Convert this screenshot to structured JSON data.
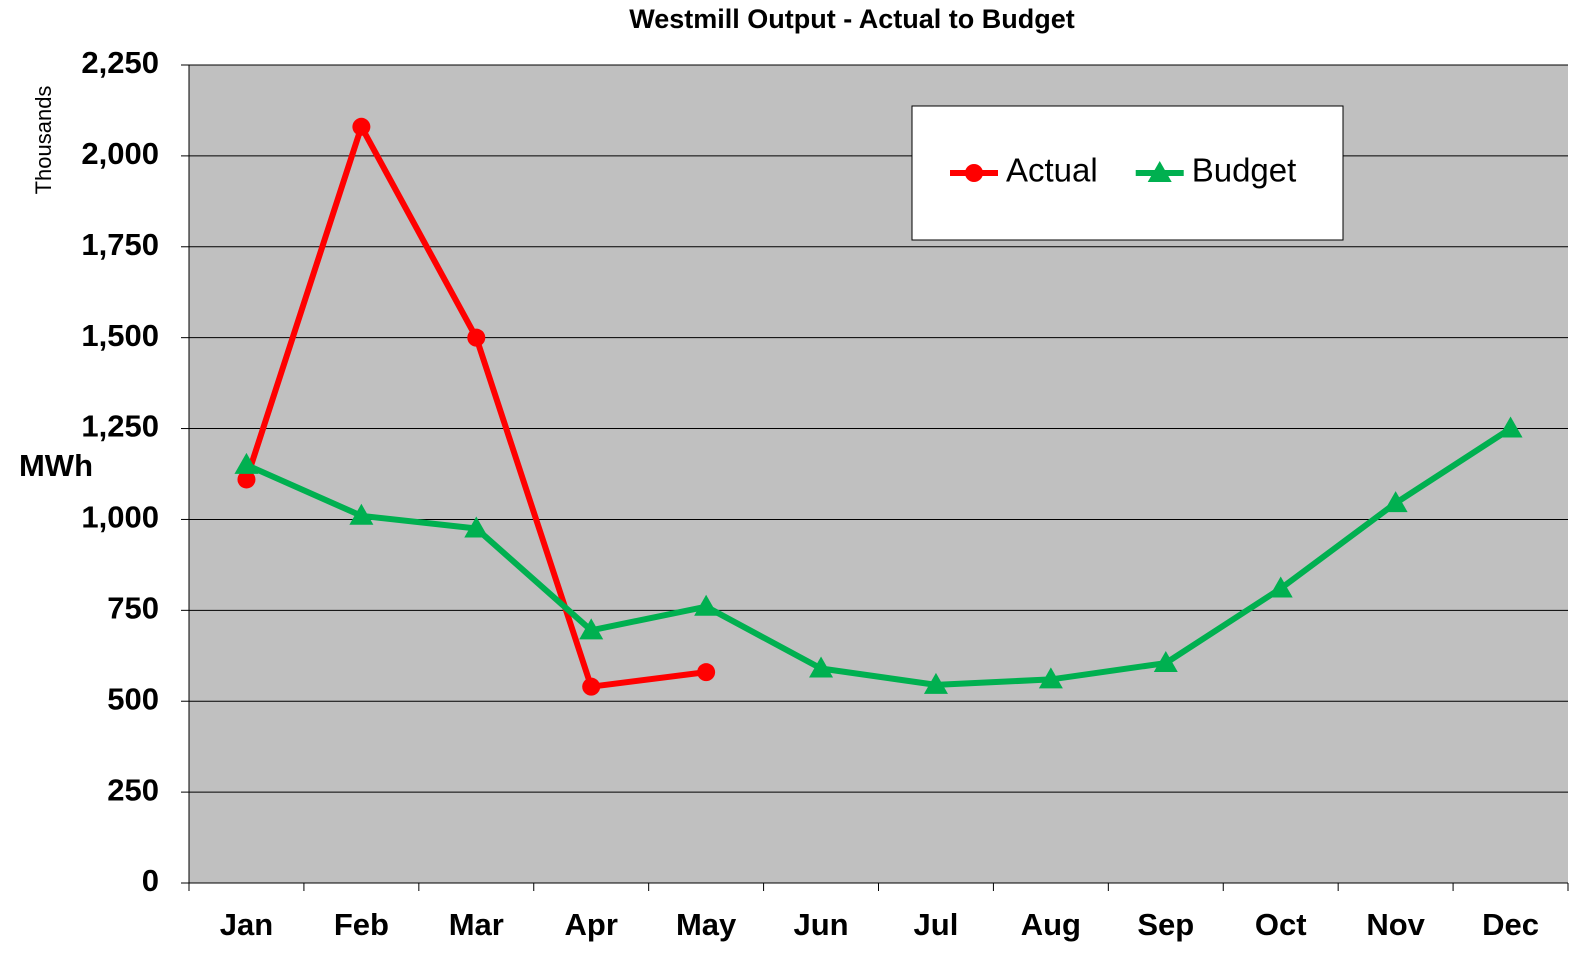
{
  "chart_data": {
    "type": "line",
    "title": "Westmill Output - Actual to Budget",
    "y_label": "MWh",
    "y_unit_label": "Thousands",
    "categories": [
      "Jan",
      "Feb",
      "Mar",
      "Apr",
      "May",
      "Jun",
      "Jul",
      "Aug",
      "Sep",
      "Oct",
      "Nov",
      "Dec"
    ],
    "series": [
      {
        "name": "Actual",
        "color": "#ff0000",
        "marker": "circle",
        "values": [
          1110,
          2080,
          1500,
          540,
          580,
          null,
          null,
          null,
          null,
          null,
          null,
          null
        ]
      },
      {
        "name": "Budget",
        "color": "#00b050",
        "marker": "triangle",
        "values": [
          1150,
          1010,
          975,
          695,
          760,
          590,
          545,
          560,
          605,
          810,
          1045,
          1250
        ]
      }
    ],
    "ylim": [
      0,
      2250
    ],
    "yticks": [
      0,
      250,
      500,
      750,
      {
        "value": 1000,
        "label": "1,000"
      },
      {
        "value": 1250,
        "label": "1,250"
      },
      {
        "value": 1500,
        "label": "1,500"
      },
      {
        "value": 1750,
        "label": "1,750"
      },
      {
        "value": 2000,
        "label": "2,000"
      },
      {
        "value": 2250,
        "label": "2,250"
      }
    ],
    "grid": true,
    "legend": "upper right",
    "plot_background": "#c0c0c0"
  }
}
